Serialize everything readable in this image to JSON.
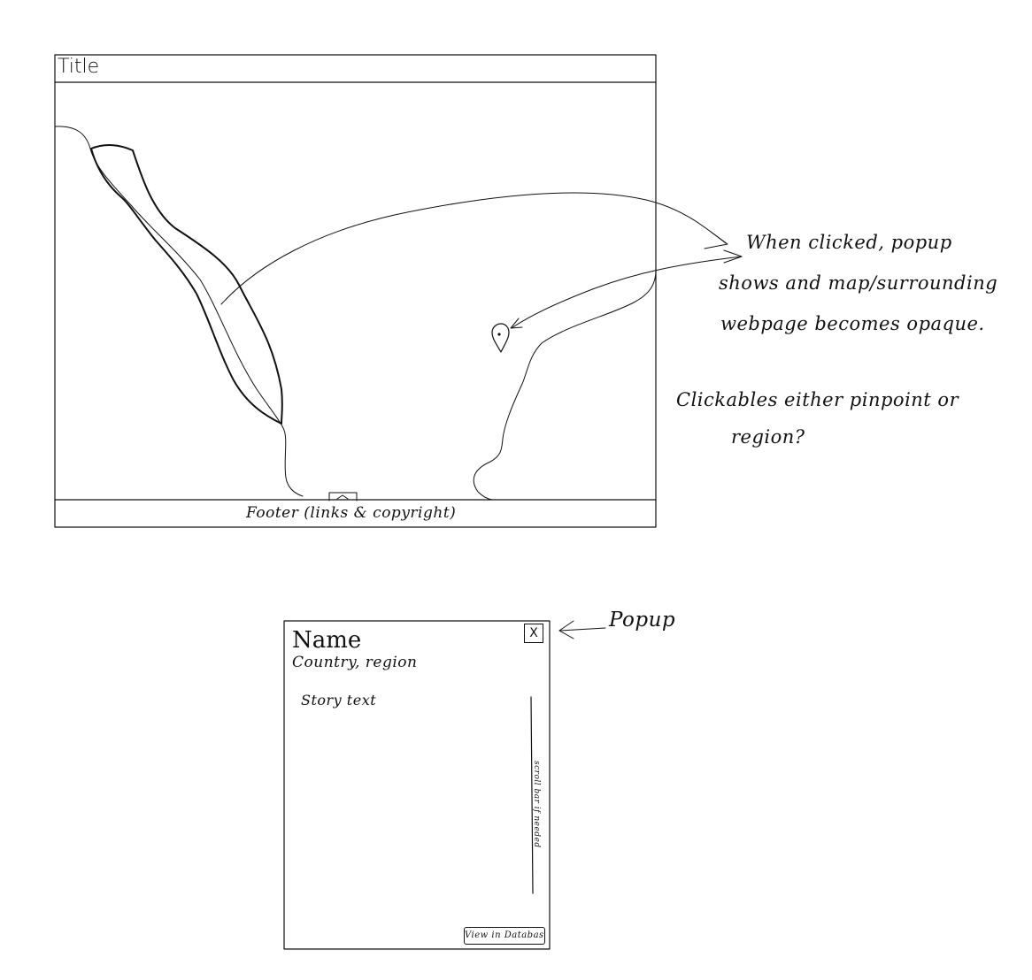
{
  "wireframe": {
    "title": "Title",
    "footer": "Footer (links & copyright)"
  },
  "annotations": {
    "popup_behavior": [
      "When clicked, popup",
      "shows and map/surrounding",
      "webpage becomes opaque."
    ],
    "clickables_question": [
      "Clickables either pinpoint or",
      "region?"
    ],
    "popup_label": "Popup"
  },
  "popup": {
    "name": "Name",
    "subtitle": "Country, region",
    "story": "Story text",
    "close_label": "X",
    "scroll_note": "scroll bar if needed",
    "view_button": "View in Database"
  },
  "icons": [
    "map-pin-icon",
    "expand-chevron-icon",
    "close-icon",
    "arrow-icon"
  ]
}
